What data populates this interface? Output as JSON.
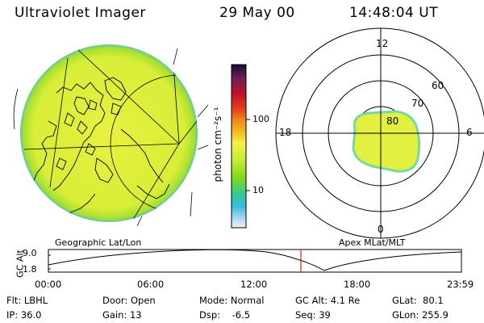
{
  "header": {
    "title": "Ultraviolet Imager",
    "date": "29 May 00",
    "time": "14:48:04 UT"
  },
  "colorbar": {
    "label": "photon cm⁻²s⁻¹",
    "ticks": [
      "100",
      "10"
    ],
    "colors": [
      "#1a0a2e",
      "#6b1e5a",
      "#c0102a",
      "#e83c1e",
      "#f08a1a",
      "#f4c020",
      "#f4f050",
      "#c8ee30",
      "#7ed820",
      "#30c8a0",
      "#40b8e0",
      "#a8d8f0",
      "#e8f4fa"
    ]
  },
  "polar": {
    "lat_labels": [
      "80",
      "70",
      "60"
    ],
    "mlt_labels": {
      "top": "12",
      "left": "18",
      "right": "6",
      "bottom": "0"
    }
  },
  "timeline": {
    "axis_label": "GC Alt",
    "y_ticks": [
      "9.0",
      "1.8"
    ],
    "left_caption": "Geographic Lat/Lon",
    "right_caption": "Apex MLat/MLT",
    "x_ticks": [
      "00:00",
      "06:00",
      "12:00",
      "18:00",
      "23:59"
    ]
  },
  "info": {
    "filter": "Flt: LBHL",
    "door": "Door: Open",
    "mode": "Mode: Normal",
    "gc_alt": "GC Alt: 4.1 Re",
    "glat": "GLat:  80.1",
    "ip": "IP: 36.0",
    "gain": "Gain: 13",
    "dsp": "Dsp:    -6.5",
    "seq": "Seq: 39",
    "glon": "GLon: 255.9"
  }
}
